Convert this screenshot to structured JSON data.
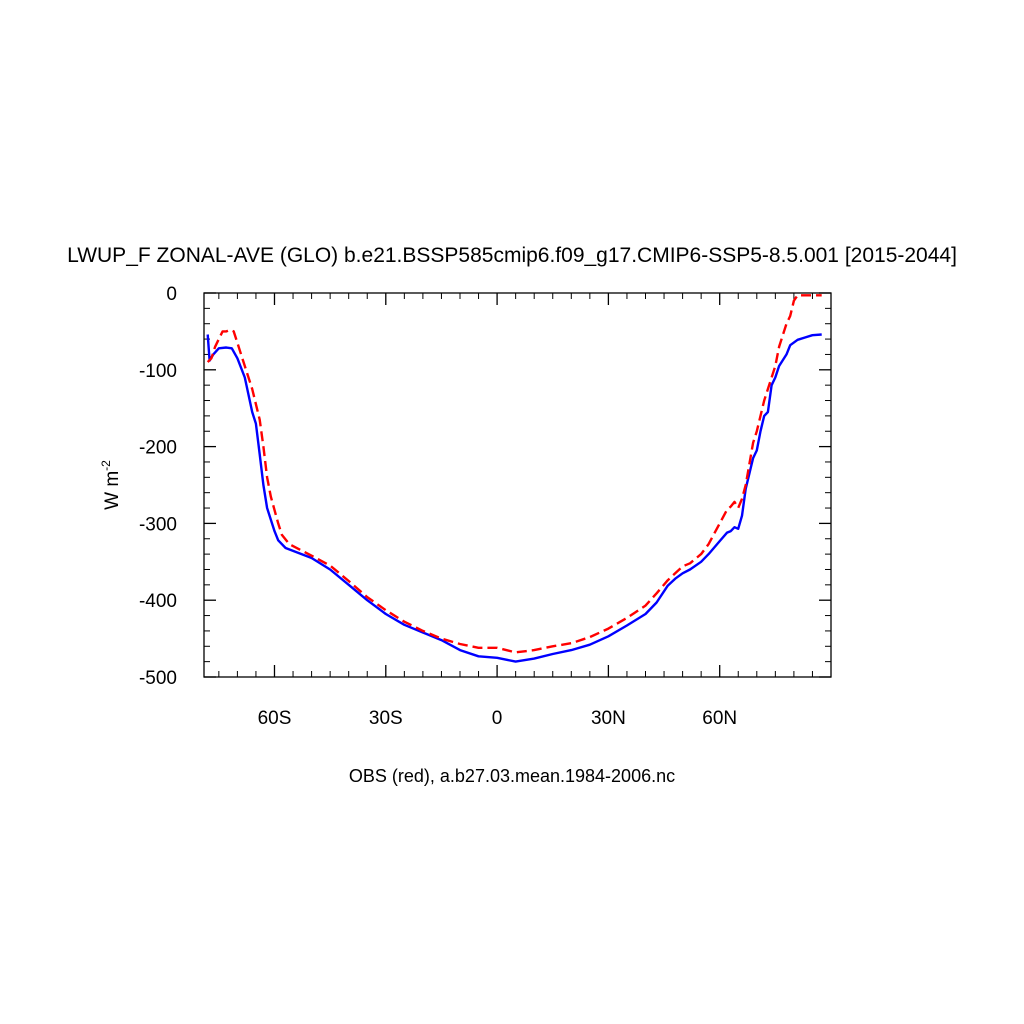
{
  "chart_data": {
    "type": "line",
    "title": "LWUP_F ZONAL-AVE (GLO) b.e21.BSSP585cmip6.f09_g17.CMIP6-SSP5-8.5.001 [2015-2044]",
    "ylabel_base": "W m",
    "ylabel_exp": "-2",
    "footer": "OBS (red), a.b27.03.mean.1984-2006.nc",
    "xlim": [
      -79,
      90
    ],
    "ylim": [
      -500,
      0
    ],
    "x_ticks": [
      {
        "value": -60,
        "label": "60S"
      },
      {
        "value": -30,
        "label": "30S"
      },
      {
        "value": 0,
        "label": "0"
      },
      {
        "value": 30,
        "label": "30N"
      },
      {
        "value": 60,
        "label": "60N"
      }
    ],
    "y_ticks": [
      {
        "value": 0,
        "label": "0"
      },
      {
        "value": -100,
        "label": "-100"
      },
      {
        "value": -200,
        "label": "-200"
      },
      {
        "value": -300,
        "label": "-300"
      },
      {
        "value": -400,
        "label": "-400"
      },
      {
        "value": -500,
        "label": "-500"
      }
    ],
    "grid": false,
    "series": [
      {
        "color": "#0000ff",
        "dash": "solid",
        "points": [
          [
            -78,
            -54
          ],
          [
            -77.5,
            -88
          ],
          [
            -76.5,
            -80
          ],
          [
            -75,
            -72
          ],
          [
            -73,
            -71
          ],
          [
            -71.5,
            -72
          ],
          [
            -70,
            -85
          ],
          [
            -68,
            -110
          ],
          [
            -66,
            -155
          ],
          [
            -65,
            -170
          ],
          [
            -64,
            -210
          ],
          [
            -63,
            -250
          ],
          [
            -62,
            -280
          ],
          [
            -60,
            -310
          ],
          [
            -59,
            -322
          ],
          [
            -57,
            -332
          ],
          [
            -50,
            -345
          ],
          [
            -45,
            -360
          ],
          [
            -40,
            -380
          ],
          [
            -35,
            -400
          ],
          [
            -30,
            -418
          ],
          [
            -25,
            -432
          ],
          [
            -20,
            -442
          ],
          [
            -15,
            -452
          ],
          [
            -10,
            -465
          ],
          [
            -5,
            -473
          ],
          [
            0,
            -475
          ],
          [
            5,
            -480
          ],
          [
            10,
            -476
          ],
          [
            15,
            -470
          ],
          [
            20,
            -465
          ],
          [
            25,
            -458
          ],
          [
            30,
            -447
          ],
          [
            35,
            -433
          ],
          [
            40,
            -418
          ],
          [
            43,
            -403
          ],
          [
            46,
            -381
          ],
          [
            48,
            -372
          ],
          [
            50,
            -365
          ],
          [
            52,
            -360
          ],
          [
            55,
            -350
          ],
          [
            57,
            -340
          ],
          [
            60,
            -323
          ],
          [
            62,
            -312
          ],
          [
            63,
            -310
          ],
          [
            64,
            -305
          ],
          [
            65,
            -307
          ],
          [
            66,
            -290
          ],
          [
            67,
            -255
          ],
          [
            69,
            -215
          ],
          [
            70,
            -205
          ],
          [
            71,
            -180
          ],
          [
            72,
            -160
          ],
          [
            73,
            -155
          ],
          [
            74,
            -120
          ],
          [
            75,
            -110
          ],
          [
            76,
            -95
          ],
          [
            78,
            -80
          ],
          [
            79,
            -68
          ],
          [
            81,
            -61
          ],
          [
            83,
            -58
          ],
          [
            85,
            -55
          ],
          [
            87.5,
            -54
          ]
        ]
      },
      {
        "color": "#ff0000",
        "dash": "dashed",
        "points": [
          [
            -78,
            -90
          ],
          [
            -77,
            -85
          ],
          [
            -76,
            -70
          ],
          [
            -75,
            -60
          ],
          [
            -74,
            -50
          ],
          [
            -73,
            -50
          ],
          [
            -72,
            -48
          ],
          [
            -71,
            -50
          ],
          [
            -70,
            -65
          ],
          [
            -68,
            -95
          ],
          [
            -66,
            -125
          ],
          [
            -64,
            -165
          ],
          [
            -63,
            -200
          ],
          [
            -62,
            -240
          ],
          [
            -61,
            -265
          ],
          [
            -59,
            -300
          ],
          [
            -58,
            -315
          ],
          [
            -56,
            -327
          ],
          [
            -50,
            -342
          ],
          [
            -45,
            -355
          ],
          [
            -40,
            -375
          ],
          [
            -35,
            -396
          ],
          [
            -30,
            -413
          ],
          [
            -25,
            -428
          ],
          [
            -20,
            -440
          ],
          [
            -15,
            -450
          ],
          [
            -10,
            -457
          ],
          [
            -5,
            -462
          ],
          [
            0,
            -462
          ],
          [
            5,
            -468
          ],
          [
            10,
            -465
          ],
          [
            15,
            -460
          ],
          [
            20,
            -456
          ],
          [
            25,
            -448
          ],
          [
            30,
            -437
          ],
          [
            35,
            -423
          ],
          [
            40,
            -407
          ],
          [
            43,
            -391
          ],
          [
            46,
            -374
          ],
          [
            48,
            -365
          ],
          [
            50,
            -356
          ],
          [
            52,
            -352
          ],
          [
            55,
            -340
          ],
          [
            57,
            -327
          ],
          [
            60,
            -300
          ],
          [
            62,
            -282
          ],
          [
            63,
            -278
          ],
          [
            64,
            -272
          ],
          [
            65,
            -280
          ],
          [
            66,
            -268
          ],
          [
            67,
            -250
          ],
          [
            69,
            -195
          ],
          [
            70,
            -180
          ],
          [
            71,
            -160
          ],
          [
            72,
            -140
          ],
          [
            73,
            -125
          ],
          [
            74,
            -110
          ],
          [
            75,
            -95
          ],
          [
            76,
            -70
          ],
          [
            77,
            -55
          ],
          [
            78,
            -40
          ],
          [
            79,
            -30
          ],
          [
            80,
            -10
          ],
          [
            81,
            -3
          ],
          [
            83,
            -3
          ],
          [
            87.5,
            -3
          ]
        ]
      }
    ]
  }
}
